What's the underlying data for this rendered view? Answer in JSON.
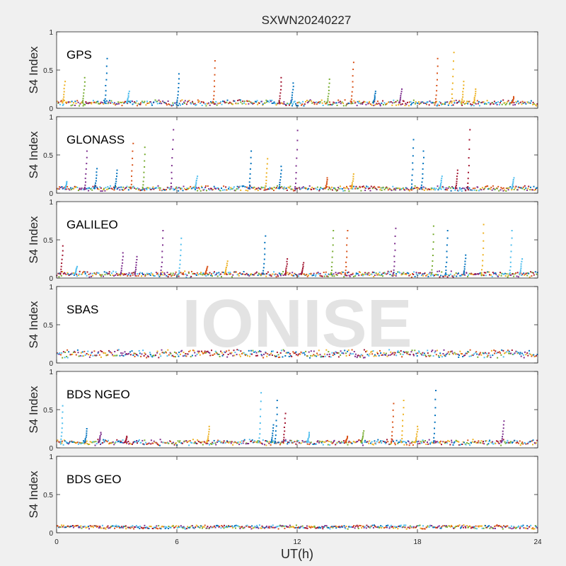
{
  "figure": {
    "title": "SXWN20240227",
    "xlabel": "UT(h)",
    "watermark": "IONISE"
  },
  "colors": {
    "background": "#f0f0f0",
    "axes_bg": "#ffffff",
    "axis": "#262626",
    "watermark": "#d9d9d9",
    "series": [
      "#0072bd",
      "#d95319",
      "#edb120",
      "#7e2f8e",
      "#77ac30",
      "#4dbeee",
      "#a2142f"
    ]
  },
  "chart_data": [
    {
      "type": "scatter",
      "label": "GPS",
      "ylabel": "S4 Index",
      "xlim": [
        0,
        24
      ],
      "ylim": [
        0,
        1
      ],
      "yticks": [
        0,
        0.5,
        1
      ],
      "ytick_labels": [
        "0",
        "0.5",
        "1"
      ],
      "xticks": [
        0,
        6,
        12,
        18,
        24
      ],
      "xtick_labels": [],
      "grid": false,
      "baseline": 0.07,
      "noise": 0.025,
      "spikes": [
        [
          0.4,
          0.35,
          2
        ],
        [
          1.4,
          0.4,
          4
        ],
        [
          2.5,
          0.65,
          0
        ],
        [
          3.6,
          0.22,
          5
        ],
        [
          6.1,
          0.45,
          0
        ],
        [
          7.9,
          0.62,
          1
        ],
        [
          11.2,
          0.4,
          6
        ],
        [
          11.8,
          0.33,
          0
        ],
        [
          13.6,
          0.38,
          4
        ],
        [
          14.8,
          0.6,
          1
        ],
        [
          15.9,
          0.22,
          0
        ],
        [
          17.2,
          0.25,
          3
        ],
        [
          19.0,
          0.65,
          1
        ],
        [
          19.8,
          0.73,
          2
        ],
        [
          20.3,
          0.35,
          2
        ],
        [
          20.9,
          0.25,
          2
        ],
        [
          22.8,
          0.15,
          1
        ]
      ]
    },
    {
      "type": "scatter",
      "label": "GLONASS",
      "ylabel": "S4 Index",
      "xlim": [
        0,
        24
      ],
      "ylim": [
        0,
        1
      ],
      "yticks": [
        0,
        0.5,
        1
      ],
      "ytick_labels": [
        "0",
        "0.5",
        "1"
      ],
      "xticks": [
        0,
        6,
        12,
        18,
        24
      ],
      "xtick_labels": [],
      "grid": false,
      "baseline": 0.06,
      "noise": 0.02,
      "spikes": [
        [
          0.5,
          0.15,
          5
        ],
        [
          1.5,
          0.55,
          3
        ],
        [
          2.0,
          0.32,
          0
        ],
        [
          3.0,
          0.3,
          0
        ],
        [
          3.8,
          0.65,
          1
        ],
        [
          4.4,
          0.6,
          4
        ],
        [
          5.8,
          0.83,
          3
        ],
        [
          7.0,
          0.22,
          5
        ],
        [
          9.7,
          0.55,
          0
        ],
        [
          10.5,
          0.45,
          2
        ],
        [
          11.2,
          0.35,
          0
        ],
        [
          12.0,
          0.82,
          3
        ],
        [
          13.5,
          0.2,
          1
        ],
        [
          14.8,
          0.25,
          2
        ],
        [
          17.8,
          0.7,
          0
        ],
        [
          18.3,
          0.55,
          0
        ],
        [
          19.2,
          0.22,
          5
        ],
        [
          20.0,
          0.3,
          6
        ],
        [
          20.6,
          0.83,
          6
        ],
        [
          22.8,
          0.2,
          5
        ]
      ]
    },
    {
      "type": "scatter",
      "label": "GALILEO",
      "ylabel": "S4 Index",
      "xlim": [
        0,
        24
      ],
      "ylim": [
        0,
        1
      ],
      "yticks": [
        0,
        0.5,
        1
      ],
      "ytick_labels": [
        "0",
        "0.5",
        "1"
      ],
      "xticks": [
        0,
        6,
        12,
        18,
        24
      ],
      "xtick_labels": [],
      "grid": false,
      "baseline": 0.05,
      "noise": 0.025,
      "spikes": [
        [
          0.3,
          0.42,
          6
        ],
        [
          1.0,
          0.15,
          5
        ],
        [
          3.3,
          0.33,
          3
        ],
        [
          4.0,
          0.28,
          3
        ],
        [
          5.3,
          0.62,
          3
        ],
        [
          6.2,
          0.52,
          5
        ],
        [
          7.5,
          0.15,
          1
        ],
        [
          8.5,
          0.22,
          2
        ],
        [
          10.4,
          0.55,
          0
        ],
        [
          11.5,
          0.25,
          6
        ],
        [
          12.3,
          0.2,
          6
        ],
        [
          13.8,
          0.62,
          4
        ],
        [
          14.5,
          0.62,
          1
        ],
        [
          16.9,
          0.65,
          3
        ],
        [
          18.8,
          0.68,
          4
        ],
        [
          19.5,
          0.62,
          0
        ],
        [
          20.4,
          0.3,
          0
        ],
        [
          21.3,
          0.7,
          2
        ],
        [
          22.7,
          0.62,
          5
        ],
        [
          23.2,
          0.25,
          5
        ]
      ]
    },
    {
      "type": "scatter",
      "label": "SBAS",
      "ylabel": "S4 Index",
      "xlim": [
        0,
        24
      ],
      "ylim": [
        0,
        1
      ],
      "yticks": [
        0,
        0.5,
        1
      ],
      "ytick_labels": [
        "0",
        "0.5",
        "1"
      ],
      "xticks": [
        0,
        6,
        12,
        18,
        24
      ],
      "xtick_labels": [],
      "grid": false,
      "baseline": 0.12,
      "noise": 0.04,
      "spikes": []
    },
    {
      "type": "scatter",
      "label": "BDS NGEO",
      "ylabel": "S4 Index",
      "xlim": [
        0,
        24
      ],
      "ylim": [
        0,
        1
      ],
      "yticks": [
        0,
        0.5,
        1
      ],
      "ytick_labels": [
        "0",
        "0.5",
        "1"
      ],
      "xticks": [
        0,
        6,
        12,
        18,
        24
      ],
      "xtick_labels": [],
      "grid": false,
      "baseline": 0.07,
      "noise": 0.025,
      "spikes": [
        [
          0.3,
          0.55,
          5
        ],
        [
          1.5,
          0.25,
          0
        ],
        [
          2.2,
          0.2,
          3
        ],
        [
          3.5,
          0.15,
          6
        ],
        [
          7.6,
          0.28,
          2
        ],
        [
          10.2,
          0.72,
          5
        ],
        [
          10.8,
          0.3,
          0
        ],
        [
          11.0,
          0.62,
          0
        ],
        [
          11.4,
          0.45,
          6
        ],
        [
          12.6,
          0.2,
          5
        ],
        [
          14.5,
          0.15,
          1
        ],
        [
          15.3,
          0.22,
          4
        ],
        [
          16.8,
          0.58,
          1
        ],
        [
          17.3,
          0.62,
          2
        ],
        [
          18.0,
          0.28,
          2
        ],
        [
          18.9,
          0.75,
          0
        ],
        [
          22.3,
          0.35,
          3
        ]
      ]
    },
    {
      "type": "scatter",
      "label": "BDS GEO",
      "ylabel": "S4 Index",
      "xlim": [
        0,
        24
      ],
      "ylim": [
        0,
        1
      ],
      "yticks": [
        0,
        0.5,
        1
      ],
      "ytick_labels": [
        "0",
        "0.5",
        "1"
      ],
      "xticks": [
        0,
        6,
        12,
        18,
        24
      ],
      "xtick_labels": [
        "0",
        "6",
        "12",
        "18",
        "24"
      ],
      "grid": false,
      "baseline": 0.075,
      "noise": 0.012,
      "spikes": []
    }
  ]
}
